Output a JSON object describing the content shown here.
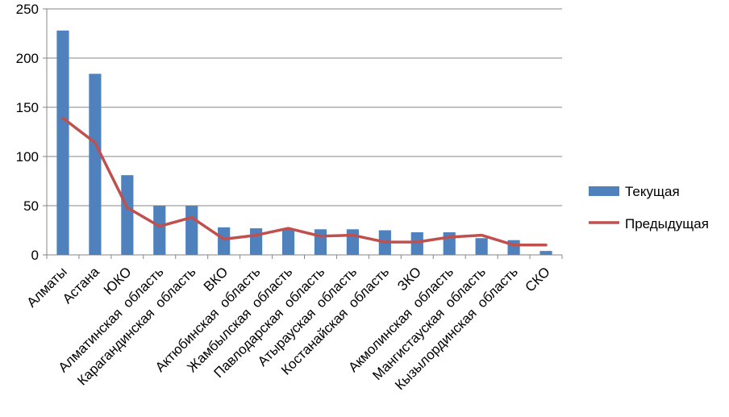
{
  "chart_data": {
    "type": "bar",
    "title": "",
    "xlabel": "",
    "ylabel": "",
    "ylim": [
      0,
      250
    ],
    "yticks": [
      0,
      50,
      100,
      150,
      200,
      250
    ],
    "grid": true,
    "legend_position": "right",
    "categories": [
      "Алматы",
      "Астана",
      "ЮКО",
      "Алматинская  область",
      "Карагандинская  область",
      "ВКО",
      "Актюбинская  область",
      "Жамбылская  область",
      "Павлодарская  область",
      "Атырауская  область",
      "Костанайская  область",
      "ЗКО",
      "Акмолинская  область",
      "Мангистауская  область",
      "Кызылординская  область",
      "СКО"
    ],
    "series": [
      {
        "name": "Текущая",
        "kind": "bar",
        "color": "#4F81BD",
        "values": [
          228,
          184,
          81,
          50,
          50,
          28,
          27,
          27,
          26,
          26,
          25,
          23,
          23,
          17,
          15,
          4
        ]
      },
      {
        "name": "Предыдущая",
        "kind": "line",
        "color": "#C0504D",
        "values": [
          139,
          114,
          48,
          29,
          38,
          16,
          20,
          27,
          19,
          20,
          13,
          13,
          18,
          20,
          10,
          10
        ]
      }
    ]
  }
}
